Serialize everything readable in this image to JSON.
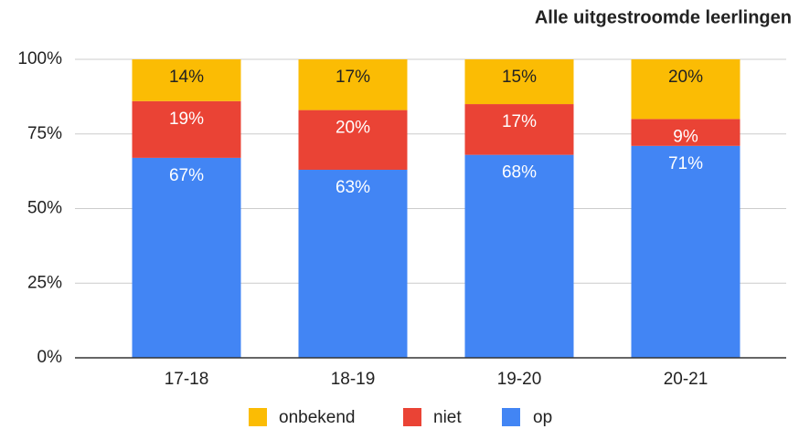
{
  "chart_data": {
    "type": "stacked_bar",
    "title": "Alle uitgestroomde leerlingen",
    "categories": [
      "17-18",
      "18-19",
      "19-20",
      "20-21"
    ],
    "series": [
      {
        "name": "op",
        "color": "#4285f4",
        "label_color": "#ffffff",
        "values": [
          67,
          63,
          68,
          71
        ],
        "value_labels": [
          "67%",
          "63%",
          "68%",
          "71%"
        ]
      },
      {
        "name": "niet",
        "color": "#ea4335",
        "label_color": "#ffffff",
        "values": [
          19,
          20,
          17,
          9
        ],
        "value_labels": [
          "19%",
          "20%",
          "17%",
          "9%"
        ]
      },
      {
        "name": "onbekend",
        "color": "#fbbc04",
        "label_color": "#222222",
        "values": [
          14,
          17,
          15,
          20
        ],
        "value_labels": [
          "14%",
          "17%",
          "15%",
          "20%"
        ]
      }
    ],
    "ylim": [
      0,
      100
    ],
    "yticks": [
      {
        "value": 0,
        "label": "0%"
      },
      {
        "value": 25,
        "label": "25%"
      },
      {
        "value": 50,
        "label": "50%"
      },
      {
        "value": 75,
        "label": "75%"
      },
      {
        "value": 100,
        "label": "100%"
      }
    ],
    "grid": true,
    "legend": "bottom"
  }
}
